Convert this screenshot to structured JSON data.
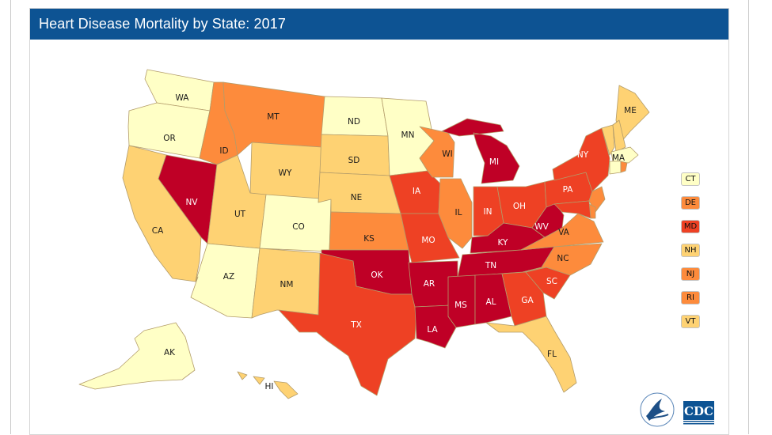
{
  "title": "Heart Disease Mortality by State: 2017",
  "palette": {
    "lowest": "#ffffc6",
    "low": "#fed273",
    "mid": "#fd8b3c",
    "high": "#ee4124",
    "highest": "#bf0026"
  },
  "states": [
    {
      "id": "WA",
      "class": "lowest"
    },
    {
      "id": "OR",
      "class": "lowest"
    },
    {
      "id": "CA",
      "class": "low"
    },
    {
      "id": "NV",
      "class": "highest"
    },
    {
      "id": "ID",
      "class": "mid"
    },
    {
      "id": "MT",
      "class": "mid"
    },
    {
      "id": "WY",
      "class": "low"
    },
    {
      "id": "UT",
      "class": "low"
    },
    {
      "id": "AZ",
      "class": "lowest"
    },
    {
      "id": "CO",
      "class": "lowest"
    },
    {
      "id": "NM",
      "class": "low"
    },
    {
      "id": "ND",
      "class": "lowest"
    },
    {
      "id": "SD",
      "class": "low"
    },
    {
      "id": "NE",
      "class": "low"
    },
    {
      "id": "KS",
      "class": "mid"
    },
    {
      "id": "OK",
      "class": "highest"
    },
    {
      "id": "TX",
      "class": "high"
    },
    {
      "id": "MN",
      "class": "lowest"
    },
    {
      "id": "IA",
      "class": "high"
    },
    {
      "id": "MO",
      "class": "high"
    },
    {
      "id": "AR",
      "class": "highest"
    },
    {
      "id": "LA",
      "class": "highest"
    },
    {
      "id": "WI",
      "class": "mid"
    },
    {
      "id": "IL",
      "class": "mid"
    },
    {
      "id": "MI",
      "class": "highest"
    },
    {
      "id": "IN",
      "class": "high"
    },
    {
      "id": "OH",
      "class": "high"
    },
    {
      "id": "KY",
      "class": "highest"
    },
    {
      "id": "TN",
      "class": "highest"
    },
    {
      "id": "MS",
      "class": "highest"
    },
    {
      "id": "AL",
      "class": "highest"
    },
    {
      "id": "GA",
      "class": "high"
    },
    {
      "id": "FL",
      "class": "low"
    },
    {
      "id": "SC",
      "class": "high"
    },
    {
      "id": "NC",
      "class": "mid"
    },
    {
      "id": "VA",
      "class": "mid"
    },
    {
      "id": "WV",
      "class": "highest"
    },
    {
      "id": "PA",
      "class": "high"
    },
    {
      "id": "NY",
      "class": "high"
    },
    {
      "id": "ME",
      "class": "low"
    },
    {
      "id": "VT",
      "class": "low"
    },
    {
      "id": "NH",
      "class": "low"
    },
    {
      "id": "MA",
      "class": "lowest"
    },
    {
      "id": "CT",
      "class": "lowest"
    },
    {
      "id": "RI",
      "class": "mid"
    },
    {
      "id": "NJ",
      "class": "mid"
    },
    {
      "id": "DE",
      "class": "mid"
    },
    {
      "id": "MD",
      "class": "high"
    },
    {
      "id": "AK",
      "class": "lowest"
    },
    {
      "id": "HI",
      "class": "low"
    }
  ],
  "callouts": [
    {
      "label": "CT",
      "class": "lowest"
    },
    {
      "label": "DE",
      "class": "mid"
    },
    {
      "label": "MD",
      "class": "high"
    },
    {
      "label": "NH",
      "class": "low"
    },
    {
      "label": "NJ",
      "class": "mid"
    },
    {
      "label": "RI",
      "class": "mid"
    },
    {
      "label": "VT",
      "class": "low"
    }
  ],
  "logo": {
    "cdc_text": "CDC",
    "hhs_icon": "hhs-eagle-seal-icon"
  }
}
